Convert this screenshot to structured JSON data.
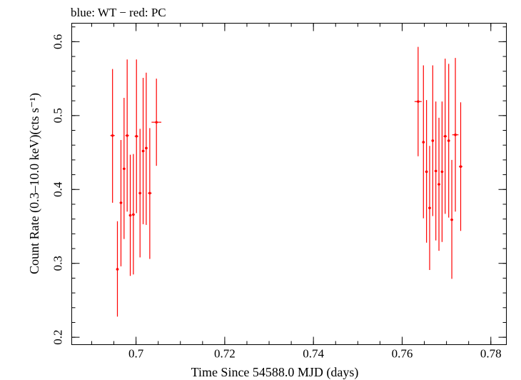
{
  "chart_data": {
    "type": "scatter",
    "title": "blue: WT − red: PC",
    "xlabel": "Time Since 54588.0 MJD (days)",
    "ylabel": "Count Rate (0.3–10.0 keV)(cts s⁻¹)",
    "xlim": [
      0.6855,
      0.7835
    ],
    "ylim": [
      0.19,
      0.625
    ],
    "x_ticks": [
      0.7,
      0.72,
      0.74,
      0.76,
      0.78
    ],
    "x_tick_labels": [
      "0.7",
      "0.72",
      "0.74",
      "0.76",
      "0.78"
    ],
    "y_ticks": [
      0.2,
      0.3,
      0.4,
      0.5,
      0.6
    ],
    "y_tick_labels": [
      "0.2",
      "0.3",
      "0.4",
      "0.5",
      "0.6"
    ],
    "grid": false,
    "series": [
      {
        "color": "#ff0000",
        "points": [
          {
            "x": 0.6947,
            "y": 0.473,
            "y_low": 0.382,
            "y_high": 0.563,
            "x_err": 0.0005
          },
          {
            "x": 0.6958,
            "y": 0.292,
            "y_low": 0.228,
            "y_high": 0.357,
            "x_err": 0.0003
          },
          {
            "x": 0.6966,
            "y": 0.382,
            "y_low": 0.296,
            "y_high": 0.467,
            "x_err": 0.0003
          },
          {
            "x": 0.6973,
            "y": 0.428,
            "y_low": 0.333,
            "y_high": 0.524,
            "x_err": 0.0003
          },
          {
            "x": 0.698,
            "y": 0.473,
            "y_low": 0.37,
            "y_high": 0.576,
            "x_err": 0.0004
          },
          {
            "x": 0.6987,
            "y": 0.365,
            "y_low": 0.283,
            "y_high": 0.447,
            "x_err": 0.0003
          },
          {
            "x": 0.6994,
            "y": 0.366,
            "y_low": 0.285,
            "y_high": 0.448,
            "x_err": 0.0003
          },
          {
            "x": 0.7001,
            "y": 0.472,
            "y_low": 0.368,
            "y_high": 0.576,
            "x_err": 0.0004
          },
          {
            "x": 0.7009,
            "y": 0.395,
            "y_low": 0.308,
            "y_high": 0.482,
            "x_err": 0.0003
          },
          {
            "x": 0.7016,
            "y": 0.452,
            "y_low": 0.353,
            "y_high": 0.551,
            "x_err": 0.0003
          },
          {
            "x": 0.7023,
            "y": 0.456,
            "y_low": 0.352,
            "y_high": 0.558,
            "x_err": 0.0003
          },
          {
            "x": 0.7031,
            "y": 0.395,
            "y_low": 0.306,
            "y_high": 0.483,
            "x_err": 0.0004
          },
          {
            "x": 0.7046,
            "y": 0.491,
            "y_low": 0.432,
            "y_high": 0.55,
            "x_err": 0.0011
          },
          {
            "x": 0.7636,
            "y": 0.519,
            "y_low": 0.445,
            "y_high": 0.593,
            "x_err": 0.0008
          },
          {
            "x": 0.7648,
            "y": 0.464,
            "y_low": 0.361,
            "y_high": 0.568,
            "x_err": 0.0003
          },
          {
            "x": 0.7655,
            "y": 0.424,
            "y_low": 0.328,
            "y_high": 0.521,
            "x_err": 0.0003
          },
          {
            "x": 0.7662,
            "y": 0.375,
            "y_low": 0.291,
            "y_high": 0.459,
            "x_err": 0.0003
          },
          {
            "x": 0.7669,
            "y": 0.466,
            "y_low": 0.364,
            "y_high": 0.568,
            "x_err": 0.0003
          },
          {
            "x": 0.7676,
            "y": 0.425,
            "y_low": 0.331,
            "y_high": 0.519,
            "x_err": 0.0003
          },
          {
            "x": 0.7683,
            "y": 0.407,
            "y_low": 0.317,
            "y_high": 0.497,
            "x_err": 0.0003
          },
          {
            "x": 0.769,
            "y": 0.424,
            "y_low": 0.329,
            "y_high": 0.519,
            "x_err": 0.0003
          },
          {
            "x": 0.7697,
            "y": 0.472,
            "y_low": 0.367,
            "y_high": 0.577,
            "x_err": 0.0004
          },
          {
            "x": 0.7705,
            "y": 0.466,
            "y_low": 0.362,
            "y_high": 0.57,
            "x_err": 0.0003
          },
          {
            "x": 0.7712,
            "y": 0.359,
            "y_low": 0.279,
            "y_high": 0.44,
            "x_err": 0.0003
          },
          {
            "x": 0.772,
            "y": 0.474,
            "y_low": 0.37,
            "y_high": 0.578,
            "x_err": 0.0007
          },
          {
            "x": 0.7732,
            "y": 0.431,
            "y_low": 0.344,
            "y_high": 0.518,
            "x_err": 0.0004
          }
        ]
      }
    ]
  }
}
